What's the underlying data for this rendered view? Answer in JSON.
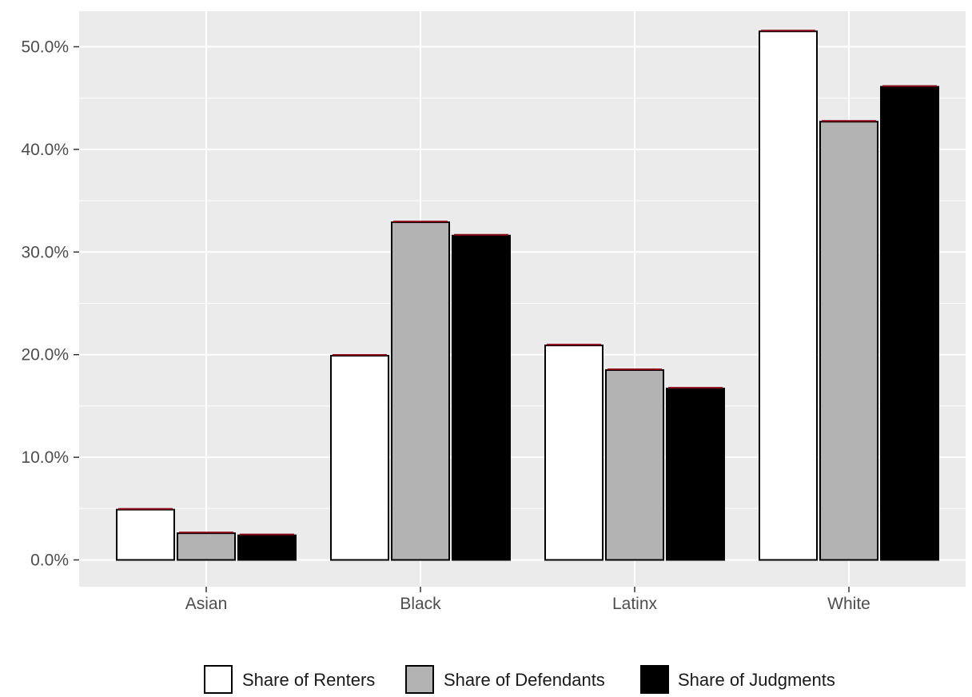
{
  "chart_data": {
    "type": "bar",
    "title": "",
    "xlabel": "",
    "ylabel": "",
    "categories": [
      "Asian",
      "Black",
      "Latinx",
      "White"
    ],
    "series": [
      {
        "name": "Share of Renters",
        "values": [
          4.9,
          19.9,
          20.9,
          51.5
        ],
        "color": "#ffffff"
      },
      {
        "name": "Share of Defendants",
        "values": [
          2.6,
          32.9,
          18.5,
          42.7
        ],
        "color": "#b3b3b3"
      },
      {
        "name": "Share of Judgments",
        "values": [
          2.4,
          31.6,
          16.7,
          46.1
        ],
        "color": "#000000"
      }
    ],
    "y_ticks": [
      "0.0%",
      "10.0%",
      "20.0%",
      "30.0%",
      "40.0%",
      "50.0%"
    ],
    "y_tick_values": [
      0,
      10,
      20,
      30,
      40,
      50
    ],
    "ylim": [
      0,
      53.2
    ],
    "grid": true,
    "legend_position": "bottom",
    "colors": {
      "panel": "#ebebeb",
      "grid": "#ffffff",
      "error_bar": "#8b0a1a",
      "bar_outline": "#000000"
    }
  }
}
